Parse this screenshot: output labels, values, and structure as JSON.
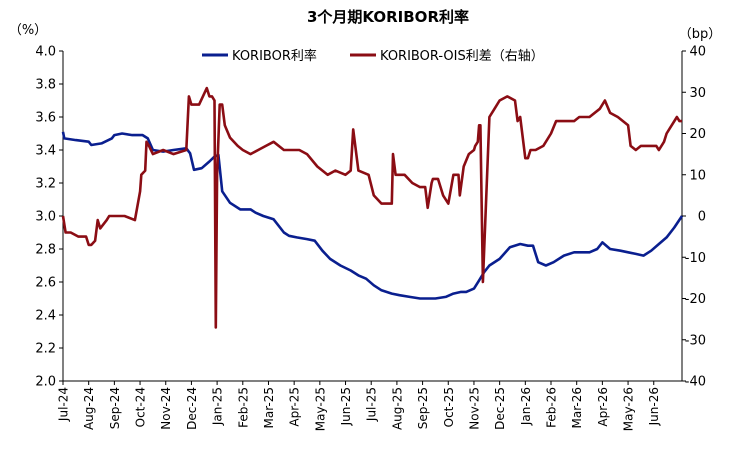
{
  "chart_data": {
    "type": "line",
    "title": "3个月期KORIBOR利率",
    "left_unit": "（%）",
    "right_unit": "（bp）",
    "y_left": {
      "min": 2.0,
      "max": 4.0,
      "ticks": [
        4.0,
        3.8,
        3.6,
        3.4,
        3.2,
        3.0,
        2.8,
        2.6,
        2.4,
        2.2,
        2.0
      ]
    },
    "y_right": {
      "min": -40,
      "max": 40,
      "ticks": [
        40,
        30,
        20,
        10,
        0,
        -10,
        -20,
        -30,
        -40
      ]
    },
    "x_range": [
      0,
      24.1
    ],
    "x_tick_labels": [
      "Jul-24",
      "Aug-24",
      "Sep-24",
      "Oct-24",
      "Nov-24",
      "Dec-24",
      "Jan-25",
      "Feb-25",
      "Mar-25",
      "Apr-25",
      "May-25",
      "Jun-25",
      "Jul-25",
      "Aug-25",
      "Sep-25",
      "Oct-25",
      "Nov-25",
      "Dec-25",
      "Jan-26",
      "Feb-26",
      "Mar-26",
      "Apr-26",
      "May-26",
      "Jun-26"
    ],
    "legend_position": "top-center",
    "series": [
      {
        "name": "KORIBOR利率",
        "axis": "left",
        "color": "#0a1f8f",
        "x": [
          0,
          0.05,
          0.5,
          1.0,
          1.1,
          1.5,
          1.9,
          2.0,
          2.3,
          2.7,
          3.1,
          3.3,
          3.5,
          3.9,
          4.3,
          4.8,
          4.95,
          5.1,
          5.4,
          5.7,
          5.9,
          6.05,
          6.2,
          6.5,
          6.9,
          7.3,
          7.5,
          7.8,
          8.2,
          8.6,
          8.8,
          9.1,
          9.5,
          9.8,
          10.1,
          10.4,
          10.8,
          11.2,
          11.5,
          11.8,
          12.1,
          12.4,
          12.8,
          13.1,
          13.5,
          13.9,
          14.2,
          14.5,
          14.9,
          15.2,
          15.5,
          15.7,
          16.0,
          16.2,
          16.4,
          16.6,
          17.0,
          17.4,
          17.8,
          18.1,
          18.3,
          18.5,
          18.8,
          19.1,
          19.5,
          19.9,
          20.2,
          20.5,
          20.8,
          21.0,
          21.3,
          21.7,
          22.0,
          22.3,
          22.6,
          22.9,
          23.2,
          23.5,
          23.8,
          24.1
        ],
        "values": [
          3.51,
          3.47,
          3.46,
          3.45,
          3.43,
          3.44,
          3.47,
          3.49,
          3.5,
          3.49,
          3.49,
          3.47,
          3.4,
          3.39,
          3.4,
          3.41,
          3.38,
          3.28,
          3.29,
          3.33,
          3.36,
          3.37,
          3.15,
          3.08,
          3.04,
          3.04,
          3.02,
          3.0,
          2.98,
          2.9,
          2.88,
          2.87,
          2.86,
          2.85,
          2.79,
          2.74,
          2.7,
          2.67,
          2.64,
          2.62,
          2.58,
          2.55,
          2.53,
          2.52,
          2.51,
          2.5,
          2.5,
          2.5,
          2.51,
          2.53,
          2.54,
          2.54,
          2.56,
          2.61,
          2.66,
          2.7,
          2.74,
          2.81,
          2.83,
          2.82,
          2.82,
          2.72,
          2.7,
          2.72,
          2.76,
          2.78,
          2.78,
          2.78,
          2.8,
          2.84,
          2.8,
          2.79,
          2.78,
          2.77,
          2.76,
          2.79,
          2.83,
          2.87,
          2.93,
          3.0
        ]
      },
      {
        "name": "KORIBOR-OIS利差（右轴）",
        "axis": "right",
        "color": "#8b0d14",
        "x": [
          0,
          0.1,
          0.3,
          0.6,
          0.9,
          1.0,
          1.1,
          1.25,
          1.35,
          1.45,
          1.7,
          1.8,
          2.0,
          2.4,
          2.8,
          3.0,
          3.05,
          3.2,
          3.25,
          3.35,
          3.5,
          3.9,
          4.3,
          4.8,
          4.9,
          5.0,
          5.3,
          5.6,
          5.7,
          5.8,
          5.9,
          5.95,
          6.0,
          6.1,
          6.2,
          6.3,
          6.5,
          6.8,
          7.0,
          7.3,
          7.6,
          7.9,
          8.2,
          8.6,
          8.8,
          9.2,
          9.5,
          9.9,
          10.3,
          10.6,
          11.0,
          11.2,
          11.3,
          11.5,
          11.9,
          12.1,
          12.4,
          12.6,
          12.8,
          12.85,
          12.95,
          13.3,
          13.6,
          13.9,
          14.1,
          14.2,
          14.35,
          14.4,
          14.6,
          14.8,
          15.0,
          15.2,
          15.4,
          15.45,
          15.6,
          15.8,
          16.0,
          16.05,
          16.15,
          16.2,
          16.25,
          16.35,
          16.6,
          16.8,
          17.0,
          17.3,
          17.6,
          17.7,
          17.8,
          18.0,
          18.1,
          18.2,
          18.4,
          18.7,
          19.0,
          19.2,
          19.5,
          19.9,
          20.1,
          20.5,
          20.9,
          21.1,
          21.3,
          21.6,
          22.0,
          22.1,
          22.3,
          22.5,
          22.7,
          22.8,
          23.0,
          23.1,
          23.2,
          23.4,
          23.5,
          23.7,
          23.9,
          24.0,
          24.1
        ],
        "values": [
          0,
          -4,
          -4,
          -5,
          -5,
          -7,
          -7,
          -6,
          -1,
          -3,
          -1,
          0,
          0,
          0,
          -1,
          6,
          10,
          11,
          18,
          17,
          15,
          16,
          15,
          16,
          29,
          27,
          27,
          31,
          29,
          29,
          28,
          -27,
          10,
          27,
          27,
          22,
          19,
          17,
          16,
          15,
          16,
          17,
          18,
          16,
          16,
          16,
          15,
          12,
          10,
          11,
          10,
          11,
          21,
          11,
          10,
          5,
          3,
          3,
          3,
          15,
          10,
          10,
          8,
          7,
          7,
          2,
          8,
          9,
          9,
          5,
          3,
          10,
          10,
          5,
          12,
          15,
          16,
          17,
          18,
          22,
          22,
          -16,
          24,
          26,
          28,
          29,
          28,
          23,
          24,
          14,
          14,
          16,
          16,
          17,
          20,
          23,
          23,
          23,
          24,
          24,
          26,
          28,
          25,
          24,
          22,
          17,
          16,
          17,
          17,
          17,
          17,
          17,
          16,
          18,
          20,
          22,
          24,
          23,
          23
        ]
      }
    ]
  }
}
